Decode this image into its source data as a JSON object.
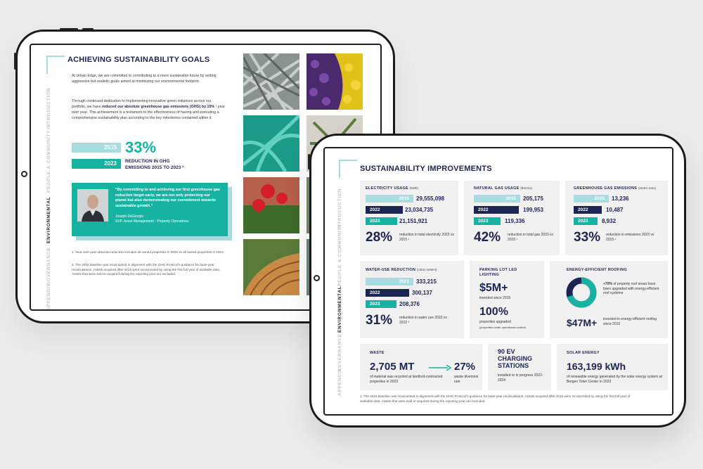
{
  "left_page": {
    "nav": [
      "INTRODUCTION",
      "PEOPLE & COMMUNITY",
      "ENVIRONMENTAL",
      "GOVERNANCE",
      "APPENDIX"
    ],
    "nav_active_index": 2,
    "title": "ACHIEVING SUSTAINABILITY GOALS",
    "para1": "At Urban Edge, we are committed to contributing to a more sustainable future by setting aggressive but realistic goals aimed at minimizing our environmental footprint.",
    "para2_a": "Through continued dedication to implementing innovative green initiatives across our portfolio, we have ",
    "para2_bold": "reduced our absolute greenhouse gas emissions (GHG) by 15%",
    "para2_b": " ¹ year over year. This achievement is a testament to the effectiveness of having and executing a comprehensive sustainability plan according to the key milestones contained within it.",
    "bar_2015": "2015",
    "bar_2023": "2023",
    "pct": "33%",
    "pct_label_1": "REDUCTION IN GHG",
    "pct_label_2": "EMISSIONS 2015 TO 2023 ²",
    "quote": "“By committing to and achieving our first greenhouse gas reduction target early, we are not only protecting our planet but also demonstrating our commitment towards sustainable growth.”",
    "quote_name": "Joseph DeGiorgio",
    "quote_role": "SVP, Asset Management - Property Operations",
    "footnote1": "1. Year-over-year absolute reduction includes all owned properties in 2022 vs all owned properties in 2023.",
    "footnote2": "2. The 2015 baseline was recalculated in alignment with the GHG Protocol's guidance for base-year recalculations. Assets acquired after 2015 were incorporated by using the first full year of available data. Assets that were sold or acquired during the reporting year are excluded."
  },
  "right_page": {
    "nav": [
      "INTRODUCTION",
      "PEOPLE & COMMUNITY",
      "ENVIRONMENTAL",
      "GOVERNANCE",
      "APPENDIX"
    ],
    "title": "SUSTAINABILITY IMPROVEMENTS",
    "electricity": {
      "title": "ELECTRICITY USAGE",
      "unit": "(kWh)",
      "y2015": "2015",
      "v2015": "29,555,098",
      "y2022": "2022",
      "v2022": "23,034,735",
      "y2023": "2023",
      "v2023": "21,151,921",
      "pct": "28%",
      "desc": "reduction in total electricity 2023 vs 2015 ¹",
      "fill": [
        1.0,
        0.78,
        0.72
      ]
    },
    "gas": {
      "title": "NATURAL GAS USAGE",
      "unit": "(therms)",
      "y2015": "2015",
      "v2015": "205,175",
      "y2022": "2022",
      "v2022": "199,953",
      "y2023": "2023",
      "v2023": "119,336",
      "pct": "42%",
      "desc": "reduction in total gas 2023 vs 2015 ¹",
      "fill": [
        1.0,
        0.97,
        0.58
      ]
    },
    "ghg": {
      "title": "GREENHOUSE GAS EMISSIONS",
      "unit": "(metric tons)",
      "y2015": "2015",
      "v2015": "13,236",
      "y2022": "2022",
      "v2022": "10,487",
      "y2023": "2023",
      "v2023": "8,932",
      "pct": "33%",
      "desc": "reduction in emissions 2023 vs 2015 ¹",
      "fill": [
        1.0,
        0.79,
        0.67
      ]
    },
    "water": {
      "title": "WATER-USE REDUCTION",
      "unit": "(cubic meters)",
      "y2021": "2021",
      "v2021": "333,215",
      "y2022": "2022",
      "v2022": "300,137",
      "y2023": "2023",
      "v2023": "208,376",
      "pct": "31%",
      "desc": "reduction in water use 2023 vs 2022 ²",
      "fill": [
        1.0,
        0.9,
        0.63
      ]
    },
    "parking": {
      "title": "PARKING LOT LED LIGHTING",
      "amount": "$5M+",
      "amount_desc": "invested since 2015",
      "pct": "100%",
      "pct_desc": "properties upgraded",
      "pct_note": "(properties under operational control)"
    },
    "roofing": {
      "title": "ENERGY-EFFICIENT ROOFING",
      "share_text": "+70%",
      "share_desc": " of property roof areas have been upgraded with energy-efficient roof systems",
      "share_fraction": 0.7,
      "amount": "$47M+",
      "amount_desc": "invested in energy-efficient roofing since 2015"
    },
    "waste": {
      "title": "WASTE",
      "value": "2,705 MT",
      "value_desc": "of material was recycled at landlord-contracted properties in 2023",
      "pct": "27%",
      "pct_desc": "waste diversion rate"
    },
    "ev": {
      "title": "90 EV CHARGING STATIONS",
      "desc": "installed or in progress 2022-2024"
    },
    "solar": {
      "title": "SOLAR ENERGY",
      "value": "163,199 kWh",
      "desc": "of renewable energy generated by the solar energy system at Bergen Town Center in 2023"
    },
    "footnote": "1. The 2015 baseline was recalculated in alignment with the GHG Protocol's guidance for base-year recalculations. Assets acquired after 2015 were incorporated by using the first full year of available data. Assets that were sold or acquired during the reporting year are excluded."
  },
  "colors": {
    "navy": "#1c2452",
    "teal": "#16b3a3",
    "light_teal": "#a7dde0",
    "card_bg": "#f1f1f1"
  }
}
